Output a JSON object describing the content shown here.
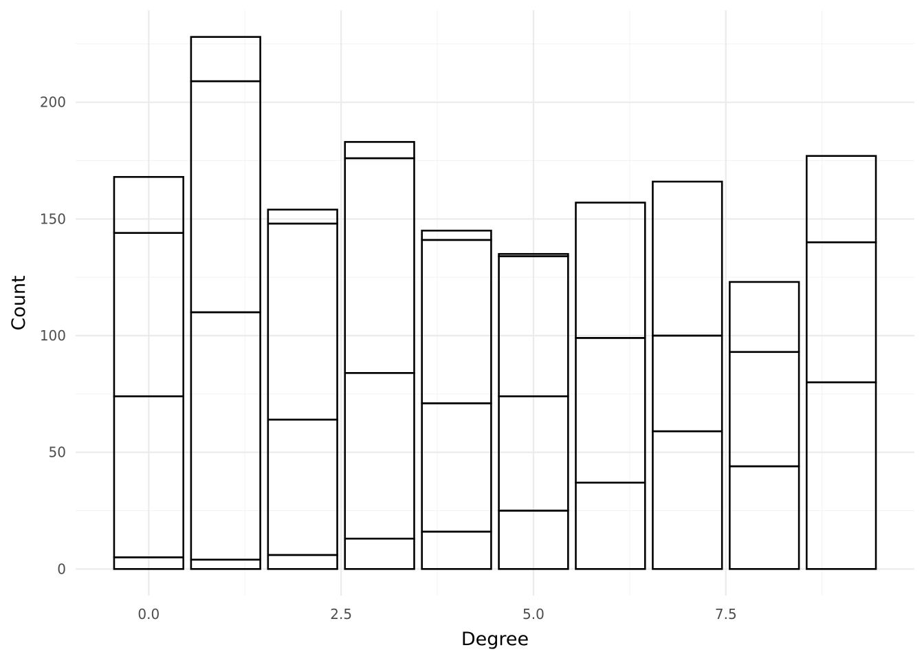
{
  "chart_data": {
    "type": "bar",
    "stacked": true,
    "xlabel": "Degree",
    "ylabel": "Count",
    "xlim": [
      -0.95,
      9.95
    ],
    "ylim": [
      -11.4,
      239.4
    ],
    "x_ticks": [
      0.0,
      2.5,
      5.0,
      7.5
    ],
    "x_tick_labels": [
      "0.0",
      "2.5",
      "5.0",
      "7.5"
    ],
    "y_ticks": [
      0,
      50,
      100,
      150,
      200
    ],
    "y_tick_labels": [
      "0",
      "50",
      "100",
      "150",
      "200"
    ],
    "grid": true,
    "legend": "none",
    "bar_fill": "none",
    "bar_outline_color": "#000000",
    "x": [
      0,
      1,
      2,
      3,
      4,
      5,
      6,
      7,
      8,
      9
    ],
    "stack_boundaries": [
      [
        5,
        74,
        144,
        168
      ],
      [
        4,
        110,
        209,
        228
      ],
      [
        6,
        64,
        148,
        154
      ],
      [
        13,
        84,
        176,
        183
      ],
      [
        16,
        71,
        141,
        145
      ],
      [
        25,
        74,
        134,
        135
      ],
      [
        37,
        99,
        157
      ],
      [
        59,
        100,
        166
      ],
      [
        44,
        93,
        123
      ],
      [
        80,
        140,
        177
      ]
    ]
  }
}
